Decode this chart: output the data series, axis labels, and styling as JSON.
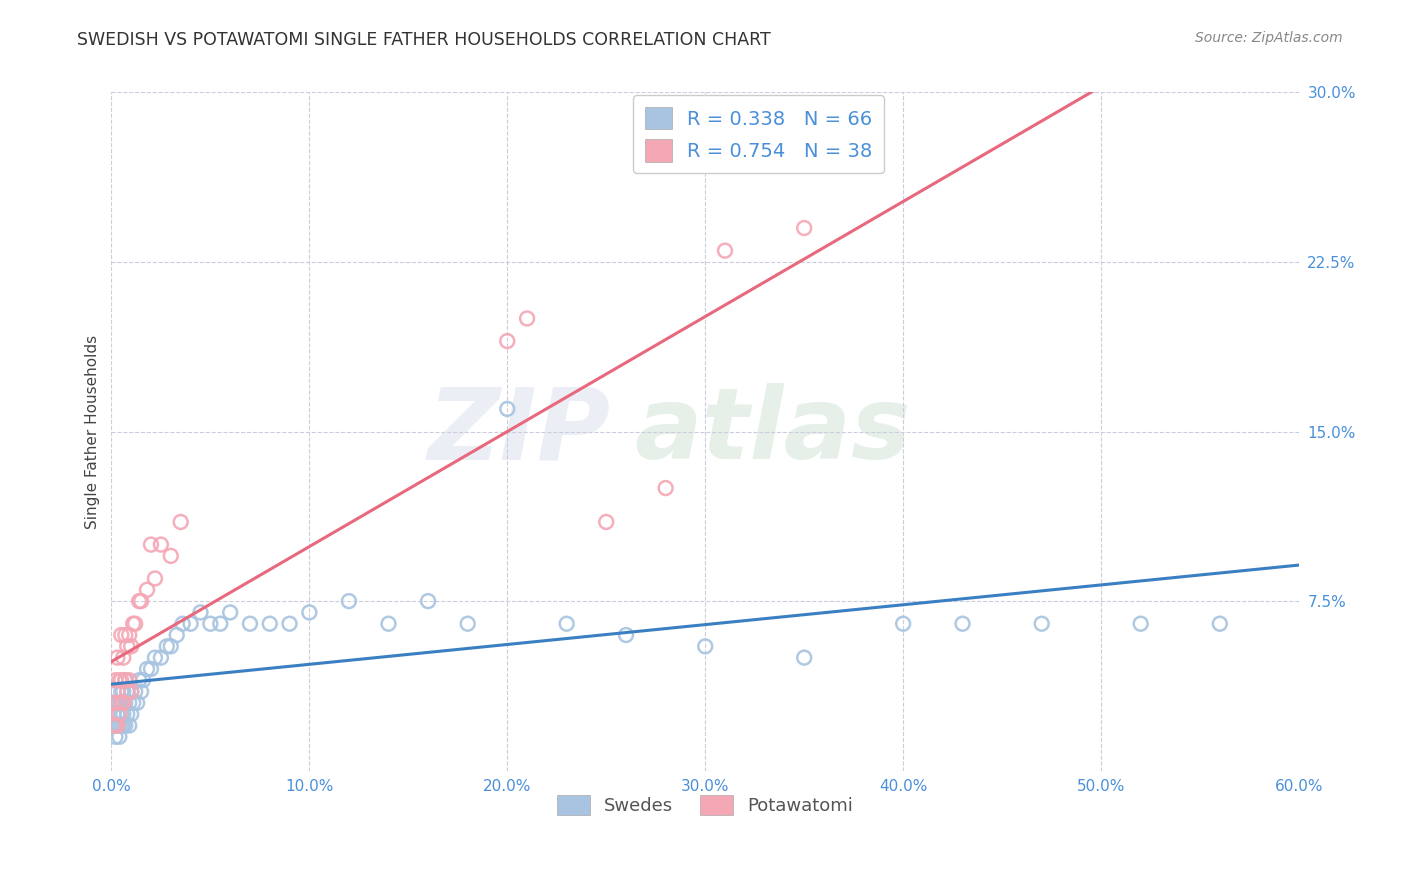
{
  "title": "SWEDISH VS POTAWATOMI SINGLE FATHER HOUSEHOLDS CORRELATION CHART",
  "source": "Source: ZipAtlas.com",
  "ylabel": "Single Father Households",
  "xlim": [
    0,
    0.6
  ],
  "ylim": [
    0,
    0.3
  ],
  "xticks": [
    0.0,
    0.1,
    0.2,
    0.3,
    0.4,
    0.5,
    0.6
  ],
  "yticks": [
    0.0,
    0.075,
    0.15,
    0.225,
    0.3
  ],
  "xticklabels": [
    "0.0%",
    "10.0%",
    "20.0%",
    "30.0%",
    "40.0%",
    "50.0%",
    "60.0%"
  ],
  "yticklabels": [
    "",
    "7.5%",
    "15.0%",
    "22.5%",
    "30.0%"
  ],
  "swedish_color": "#a8c4e0",
  "potawatomi_color": "#f4a7b5",
  "swedish_line_color": "#3a7fc1",
  "potawatomi_line_color": "#e8697d",
  "dashed_line_color": "#e8697d",
  "R_swedish": 0.338,
  "N_swedish": 66,
  "R_potawatomi": 0.754,
  "N_potawatomi": 38,
  "tick_color": "#4a90d9",
  "text_color": "#555555",
  "background_color": "#ffffff",
  "grid_color": "#ccccdd",
  "swedish_x": [
    0.001,
    0.001,
    0.001,
    0.002,
    0.002,
    0.002,
    0.003,
    0.003,
    0.003,
    0.003,
    0.004,
    0.004,
    0.004,
    0.005,
    0.005,
    0.005,
    0.005,
    0.006,
    0.006,
    0.006,
    0.007,
    0.007,
    0.007,
    0.008,
    0.008,
    0.009,
    0.009,
    0.01,
    0.01,
    0.011,
    0.012,
    0.013,
    0.014,
    0.015,
    0.016,
    0.018,
    0.02,
    0.022,
    0.025,
    0.028,
    0.03,
    0.033,
    0.036,
    0.04,
    0.045,
    0.05,
    0.055,
    0.06,
    0.07,
    0.08,
    0.09,
    0.1,
    0.12,
    0.14,
    0.16,
    0.18,
    0.2,
    0.23,
    0.26,
    0.3,
    0.35,
    0.4,
    0.43,
    0.47,
    0.52,
    0.56
  ],
  "swedish_y": [
    0.02,
    0.025,
    0.03,
    0.015,
    0.02,
    0.03,
    0.02,
    0.025,
    0.03,
    0.035,
    0.015,
    0.02,
    0.03,
    0.02,
    0.025,
    0.03,
    0.035,
    0.02,
    0.025,
    0.035,
    0.02,
    0.03,
    0.04,
    0.025,
    0.035,
    0.02,
    0.03,
    0.025,
    0.035,
    0.03,
    0.035,
    0.03,
    0.04,
    0.035,
    0.04,
    0.045,
    0.045,
    0.05,
    0.05,
    0.055,
    0.055,
    0.06,
    0.065,
    0.065,
    0.07,
    0.065,
    0.065,
    0.07,
    0.065,
    0.065,
    0.065,
    0.07,
    0.075,
    0.065,
    0.075,
    0.065,
    0.16,
    0.065,
    0.06,
    0.055,
    0.05,
    0.065,
    0.065,
    0.065,
    0.065,
    0.065
  ],
  "potawatomi_x": [
    0.001,
    0.001,
    0.002,
    0.002,
    0.003,
    0.003,
    0.003,
    0.004,
    0.004,
    0.005,
    0.005,
    0.005,
    0.006,
    0.006,
    0.007,
    0.007,
    0.008,
    0.008,
    0.009,
    0.009,
    0.01,
    0.01,
    0.011,
    0.012,
    0.014,
    0.015,
    0.018,
    0.02,
    0.022,
    0.025,
    0.03,
    0.035,
    0.2,
    0.21,
    0.25,
    0.28,
    0.31,
    0.35
  ],
  "potawatomi_y": [
    0.02,
    0.03,
    0.02,
    0.04,
    0.02,
    0.03,
    0.05,
    0.025,
    0.04,
    0.03,
    0.04,
    0.06,
    0.03,
    0.05,
    0.04,
    0.06,
    0.035,
    0.055,
    0.04,
    0.06,
    0.035,
    0.055,
    0.065,
    0.065,
    0.075,
    0.075,
    0.08,
    0.1,
    0.085,
    0.1,
    0.095,
    0.11,
    0.19,
    0.2,
    0.11,
    0.125,
    0.23,
    0.24
  ]
}
